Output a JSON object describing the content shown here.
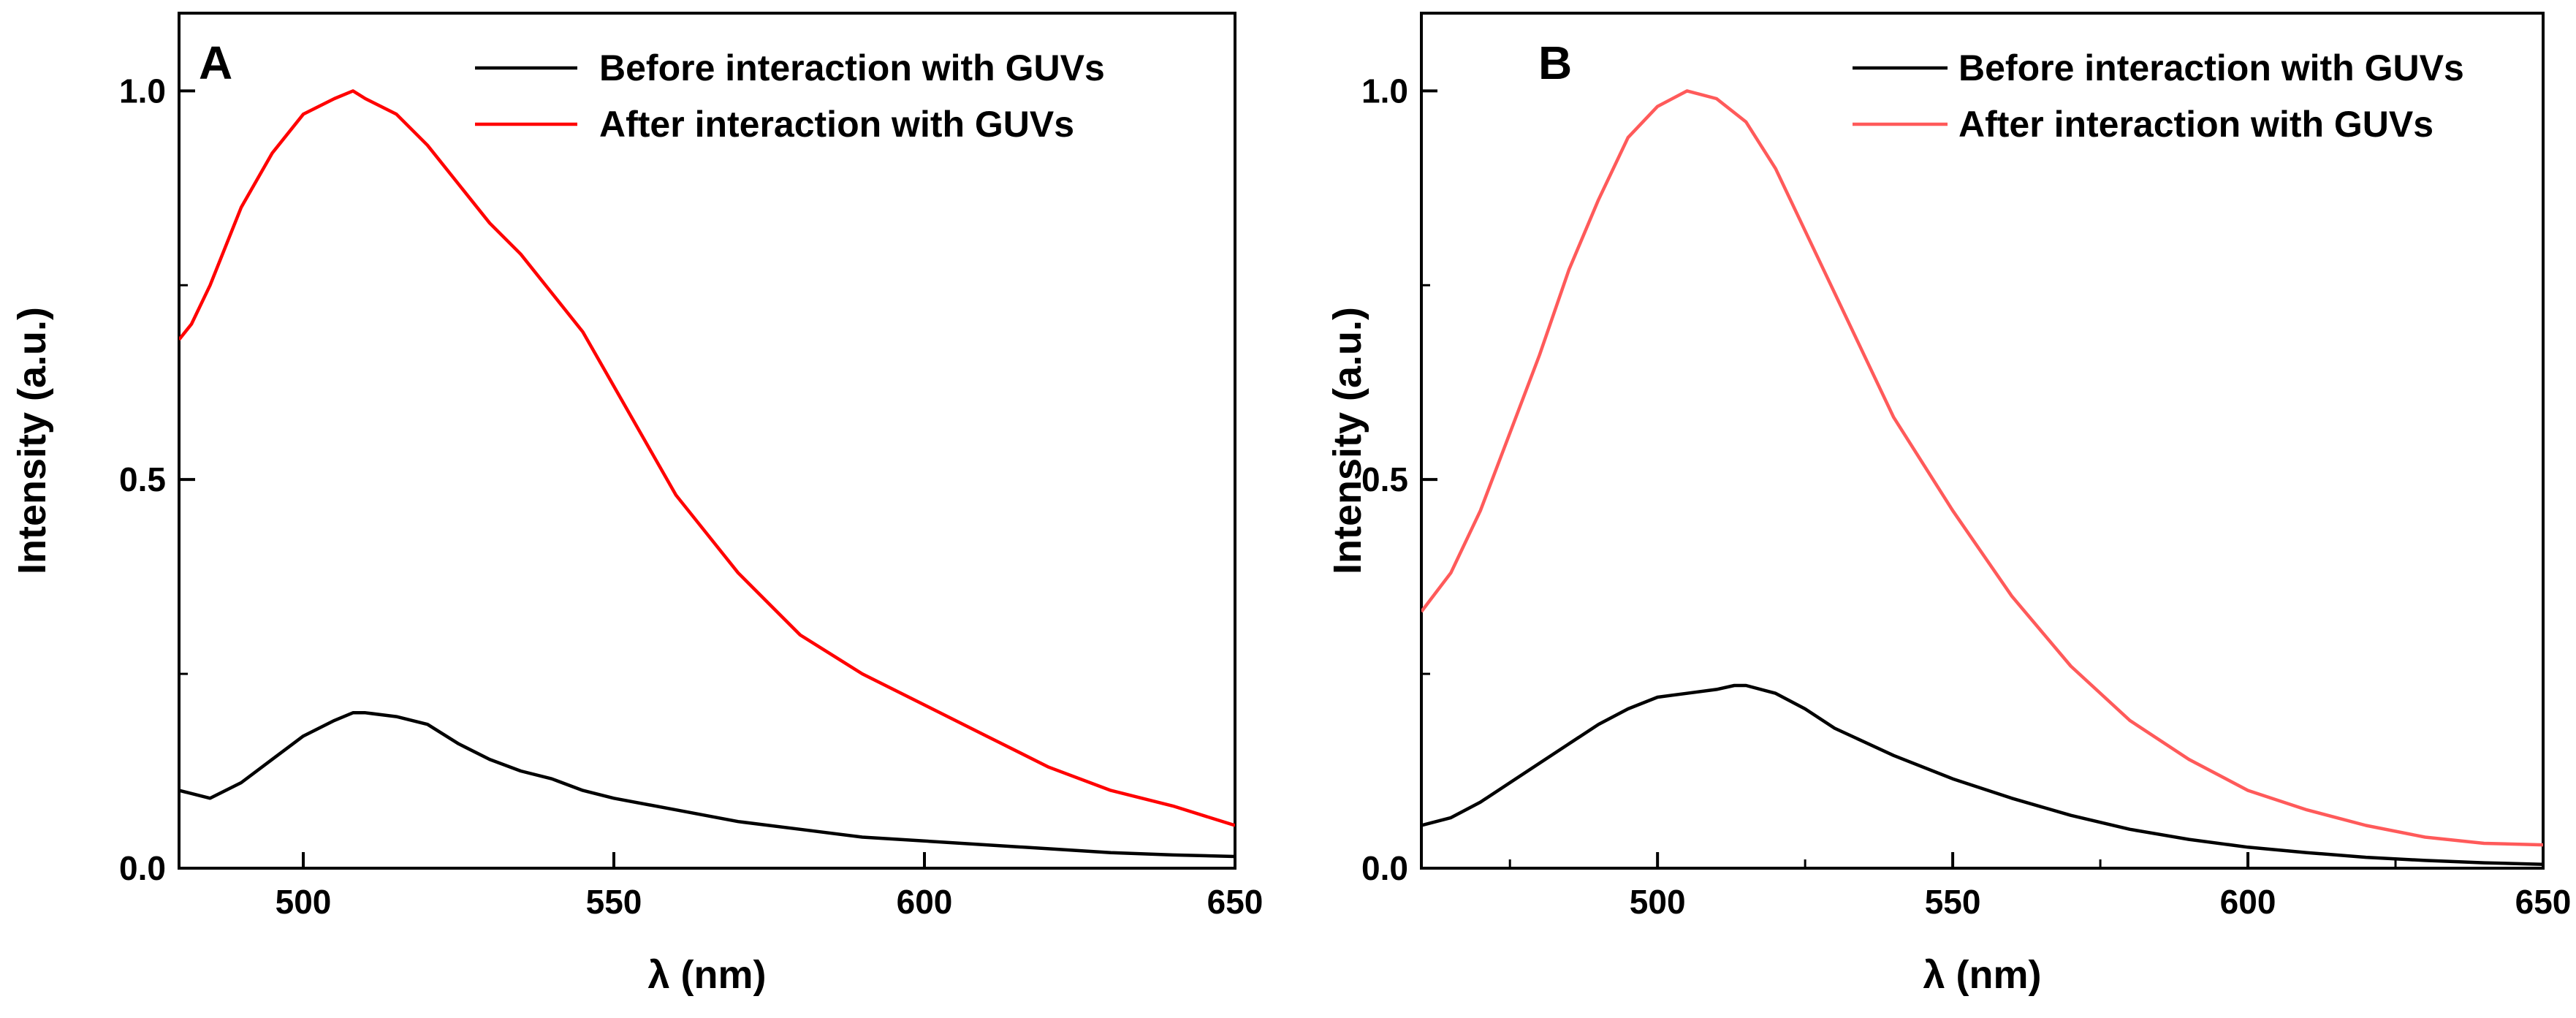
{
  "figure": {
    "description_free": true
  },
  "chart_data": [
    {
      "type": "line",
      "panel_label": "A",
      "xlabel": "λ (nm)",
      "ylabel": "Intensity (a.u.)",
      "xlim": [
        480,
        650
      ],
      "ylim": [
        0,
        1.1
      ],
      "x_ticks": [
        500,
        550,
        600,
        650
      ],
      "x_tick_labels": [
        "500",
        "550",
        "600",
        "650"
      ],
      "y_ticks": [
        0.0,
        0.5,
        1.0
      ],
      "y_tick_labels": [
        "0.0",
        "0.5",
        "1.0"
      ],
      "y_minor_ticks": [
        0.25,
        0.75
      ],
      "legend_position": "top-right",
      "series": [
        {
          "name": "Before interaction with GUVs",
          "color": "#000000",
          "x": [
            480,
            485,
            490,
            495,
            500,
            505,
            508,
            510,
            515,
            520,
            525,
            530,
            535,
            540,
            545,
            550,
            560,
            570,
            580,
            590,
            600,
            610,
            620,
            630,
            640,
            650
          ],
          "y": [
            0.1,
            0.09,
            0.11,
            0.14,
            0.17,
            0.19,
            0.2,
            0.2,
            0.195,
            0.185,
            0.16,
            0.14,
            0.125,
            0.115,
            0.1,
            0.09,
            0.075,
            0.06,
            0.05,
            0.04,
            0.035,
            0.03,
            0.025,
            0.02,
            0.017,
            0.015
          ]
        },
        {
          "name": "After interaction with GUVs",
          "color": "#ff0000",
          "x": [
            480,
            482,
            485,
            490,
            495,
            500,
            505,
            508,
            510,
            515,
            520,
            525,
            530,
            535,
            540,
            545,
            550,
            555,
            560,
            565,
            570,
            575,
            580,
            590,
            600,
            610,
            620,
            630,
            640,
            650
          ],
          "y": [
            0.68,
            0.7,
            0.75,
            0.85,
            0.92,
            0.97,
            0.99,
            1.0,
            0.99,
            0.97,
            0.93,
            0.88,
            0.83,
            0.79,
            0.74,
            0.69,
            0.62,
            0.55,
            0.48,
            0.43,
            0.38,
            0.34,
            0.3,
            0.25,
            0.21,
            0.17,
            0.13,
            0.1,
            0.08,
            0.055
          ]
        }
      ]
    },
    {
      "type": "line",
      "panel_label": "B",
      "xlabel": "λ (nm)",
      "ylabel": "Intensity (a.u.)",
      "xlim": [
        460,
        650
      ],
      "ylim": [
        0,
        1.1
      ],
      "x_ticks": [
        500,
        550,
        600,
        650
      ],
      "x_tick_labels": [
        "500",
        "550",
        "600",
        "650"
      ],
      "x_minor_ticks": [
        475,
        525,
        575,
        625
      ],
      "y_ticks": [
        0.0,
        0.5,
        1.0
      ],
      "y_tick_labels": [
        "0.0",
        "0.5",
        "1.0"
      ],
      "y_minor_ticks": [
        0.25,
        0.75
      ],
      "legend_position": "top-right",
      "series": [
        {
          "name": "Before interaction with GUVs",
          "color": "#000000",
          "x": [
            460,
            465,
            470,
            475,
            480,
            485,
            490,
            495,
            500,
            505,
            510,
            513,
            515,
            520,
            525,
            530,
            540,
            550,
            560,
            570,
            580,
            590,
            600,
            610,
            620,
            630,
            640,
            650
          ],
          "y": [
            0.055,
            0.065,
            0.085,
            0.11,
            0.135,
            0.16,
            0.185,
            0.205,
            0.22,
            0.225,
            0.23,
            0.235,
            0.235,
            0.225,
            0.205,
            0.18,
            0.145,
            0.115,
            0.09,
            0.068,
            0.05,
            0.037,
            0.027,
            0.02,
            0.014,
            0.01,
            0.007,
            0.005
          ]
        },
        {
          "name": "After interaction with GUVs",
          "color": "#ff5a5a",
          "x": [
            460,
            465,
            470,
            475,
            480,
            485,
            490,
            495,
            500,
            505,
            510,
            515,
            520,
            525,
            530,
            540,
            550,
            560,
            570,
            580,
            590,
            600,
            610,
            620,
            630,
            640,
            650
          ],
          "y": [
            0.33,
            0.38,
            0.46,
            0.56,
            0.66,
            0.77,
            0.86,
            0.94,
            0.98,
            1.0,
            0.99,
            0.96,
            0.9,
            0.82,
            0.74,
            0.58,
            0.46,
            0.35,
            0.26,
            0.19,
            0.14,
            0.1,
            0.075,
            0.055,
            0.04,
            0.032,
            0.03
          ]
        }
      ]
    }
  ]
}
